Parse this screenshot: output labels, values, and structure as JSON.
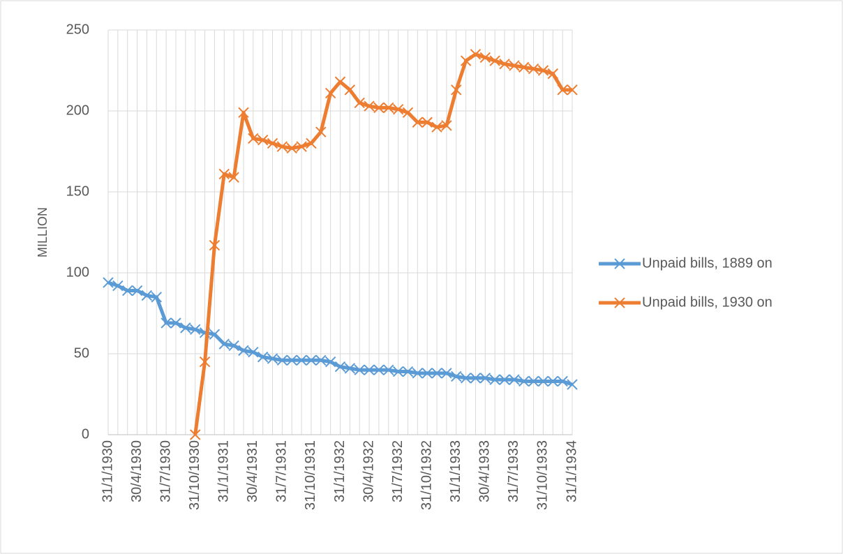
{
  "chart_data": {
    "type": "line",
    "y_label": "MILLION",
    "categories": [
      "31/1/1930",
      null,
      null,
      "30/4/1930",
      null,
      null,
      "31/7/1930",
      null,
      null,
      "31/10/1930",
      null,
      null,
      "31/1/1931",
      null,
      null,
      "30/4/1931",
      null,
      null,
      "31/7/1931",
      null,
      null,
      "31/10/1931",
      null,
      null,
      "31/1/1932",
      null,
      null,
      "30/4/1932",
      null,
      null,
      "31/7/1932",
      null,
      null,
      "31/10/1932",
      null,
      null,
      "31/1/1933",
      null,
      null,
      "30/4/1933",
      null,
      null,
      "31/7/1933",
      null,
      null,
      "31/10/1933",
      null,
      null,
      "31/1/1934"
    ],
    "series": [
      {
        "name": "Unpaid bills, 1889 on",
        "color": "#5b9bd5",
        "values": [
          94,
          92,
          89,
          89,
          86,
          85,
          69,
          69,
          66,
          65,
          63,
          62,
          56,
          55,
          52,
          51,
          48,
          47,
          46,
          46,
          46,
          46,
          46,
          45,
          42,
          41,
          40,
          40,
          40,
          40,
          39,
          39,
          38,
          38,
          38,
          38,
          36,
          35,
          35,
          35,
          34,
          34,
          34,
          33,
          33,
          33,
          33,
          33,
          31
        ]
      },
      {
        "name": "Unpaid bills, 1930 on",
        "color": "#ed7d31",
        "values": [
          null,
          null,
          null,
          null,
          null,
          null,
          null,
          null,
          null,
          0,
          45,
          117,
          161,
          159,
          199,
          183,
          182,
          180,
          178,
          177,
          178,
          180,
          187,
          211,
          218,
          213,
          205,
          203,
          202,
          202,
          201,
          199,
          193,
          193,
          190,
          191,
          213,
          231,
          235,
          233,
          231,
          229,
          228,
          227,
          226,
          225,
          223,
          213,
          213
        ]
      }
    ],
    "ylim": [
      0,
      250
    ],
    "yticks": [
      0,
      50,
      100,
      150,
      200,
      250
    ],
    "grid": true,
    "legend": "right"
  }
}
